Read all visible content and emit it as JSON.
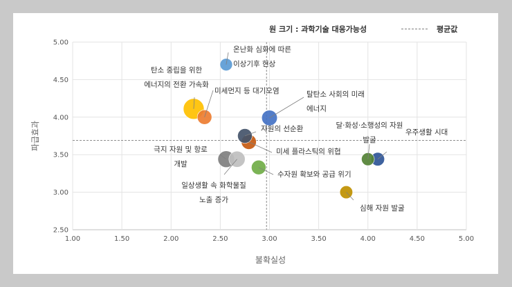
{
  "chart_data": {
    "type": "scatter",
    "xlabel": "불확실성",
    "ylabel": "파급효과",
    "xlim": [
      1.0,
      5.0
    ],
    "ylim": [
      2.5,
      5.0
    ],
    "x_ticks": [
      "1.00",
      "1.50",
      "2.00",
      "2.50",
      "3.00",
      "3.50",
      "4.00",
      "4.50",
      "5.00"
    ],
    "y_ticks": [
      "2.50",
      "3.00",
      "3.50",
      "4.00",
      "4.50",
      "5.00"
    ],
    "legend": {
      "bubble_size_label": "원 크기 : 과학기술 대응가능성",
      "average_label": "평균값"
    },
    "average": {
      "x": 2.97,
      "y": 3.69
    },
    "points": [
      {
        "name": "온난화 심화에 따른 이상기후 현상",
        "lines": [
          "온난화 심화에 따른",
          "이상기후 현상"
        ],
        "x": 2.56,
        "y": 4.7,
        "size": 0.6,
        "color": "#5b9bd5"
      },
      {
        "name": "탄소 중립을 위한 에너지의 전환 가속화",
        "lines": [
          "탄소 중립을 위한",
          "에너지의 전환 가속화"
        ],
        "x": 2.23,
        "y": 4.11,
        "size": 1.0,
        "color": "#ffc000"
      },
      {
        "name": "미세먼지 등 대기오염",
        "lines": [
          "미세먼지 등 대기오염"
        ],
        "x": 2.34,
        "y": 4.0,
        "size": 0.7,
        "color": "#ed7d31"
      },
      {
        "name": "탈탄소 사회의 미래 에너지",
        "lines": [
          "탈탄소 사회의 미래",
          "에너지"
        ],
        "x": 3.0,
        "y": 3.99,
        "size": 0.75,
        "color": "#4472c4"
      },
      {
        "name": "자원의 선순환",
        "lines": [
          "자원의 선순환"
        ],
        "x": 2.75,
        "y": 3.75,
        "size": 0.7,
        "color": "#44546a"
      },
      {
        "name": "미세 플라스틱의 위협",
        "lines": [
          "미세 플라스틱의 위협"
        ],
        "x": 2.79,
        "y": 3.67,
        "size": 0.72,
        "color": "#c55a11"
      },
      {
        "name": "극지 자원 및 항로 개발",
        "lines": [
          "극지 자원 및 항로",
          "개발"
        ],
        "x": 2.56,
        "y": 3.44,
        "size": 0.8,
        "color": "#7f7f7f"
      },
      {
        "name": "일상생활 속 화학물질 노출 증가",
        "lines": [
          "일상생활 속 화학물질",
          "노출 증가"
        ],
        "x": 2.67,
        "y": 3.44,
        "size": 0.78,
        "color": "#bfbfbf"
      },
      {
        "name": "수자원 확보와 공급 위기",
        "lines": [
          "수자원 확보와 공급 위기"
        ],
        "x": 2.89,
        "y": 3.33,
        "size": 0.7,
        "color": "#70ad47"
      },
      {
        "name": "달·화성·소행성의 자원 발굴",
        "lines": [
          "달·화성·소행성의 자원",
          "발굴"
        ],
        "x": 4.0,
        "y": 3.44,
        "size": 0.62,
        "color": "#548235"
      },
      {
        "name": "우주생활 시대",
        "lines": [
          "우주생활 시대"
        ],
        "x": 4.1,
        "y": 3.44,
        "size": 0.65,
        "color": "#2f5597"
      },
      {
        "name": "심해 자원 발굴",
        "lines": [
          "심해 자원 발굴"
        ],
        "x": 3.78,
        "y": 3.0,
        "size": 0.62,
        "color": "#bf9000"
      }
    ]
  }
}
